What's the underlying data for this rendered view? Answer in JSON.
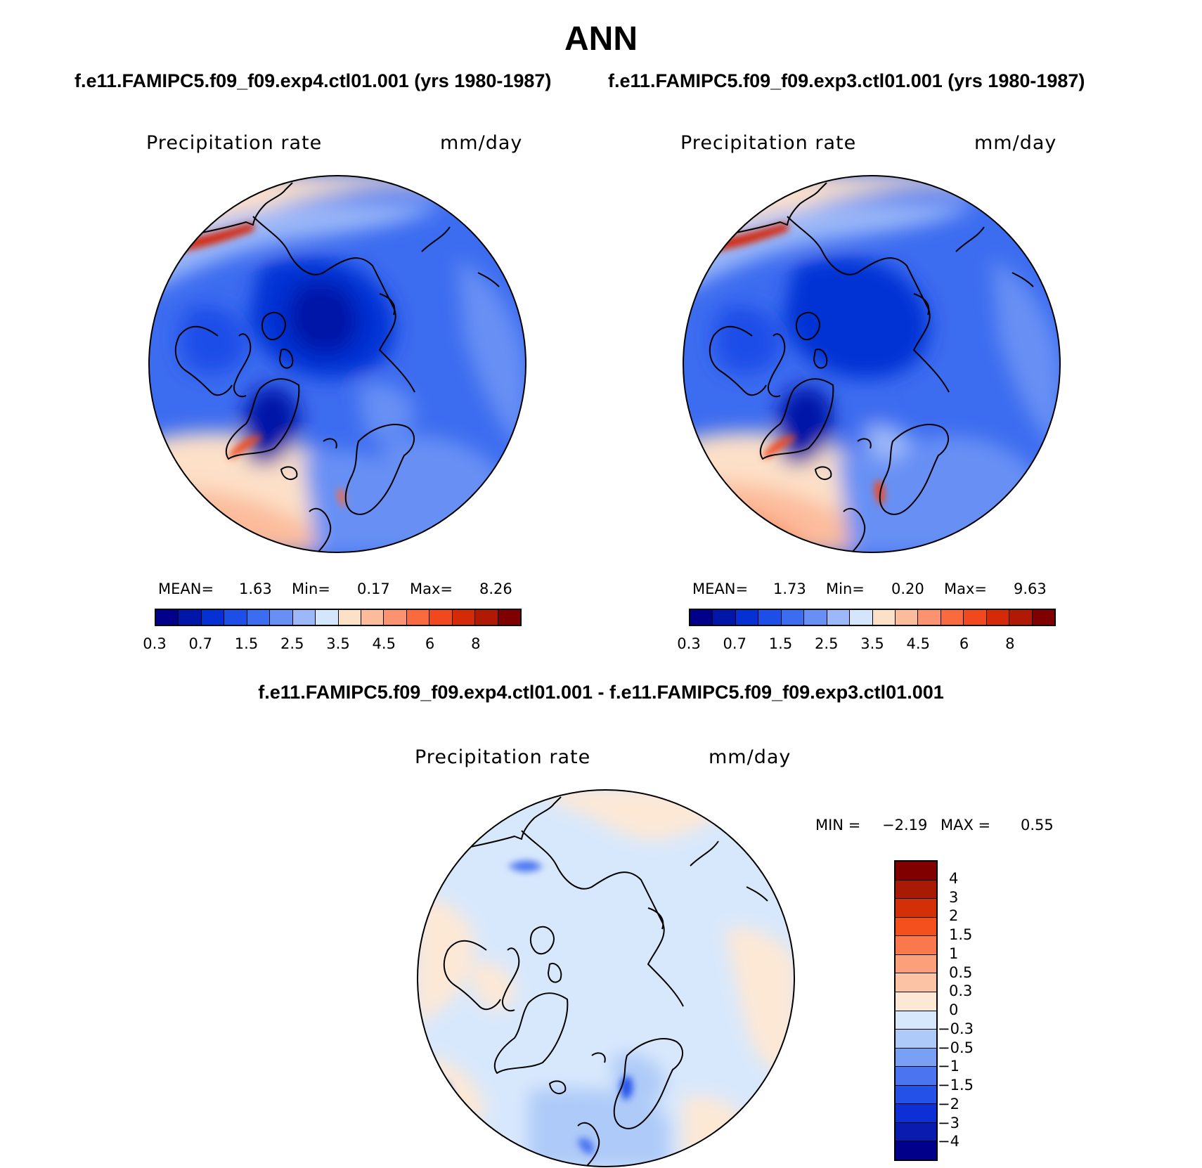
{
  "title": "ANN",
  "colors": {
    "abs_palette": [
      "#00008a",
      "#0016a8",
      "#0530d4",
      "#1e4ee8",
      "#3c6cf0",
      "#6890f4",
      "#9cb8f8",
      "#d4e6fc",
      "#fde0c8",
      "#fcbc9c",
      "#fb9370",
      "#f96a3e",
      "#f1481e",
      "#d42a08",
      "#b01a04",
      "#800000"
    ],
    "diff_palette": [
      "#00008a",
      "#0a1cb0",
      "#0c30d6",
      "#2452e8",
      "#4a74f0",
      "#7aa0f6",
      "#aecaf8",
      "#d8e8fc",
      "#fde8d6",
      "#fcc4a4",
      "#fba07a",
      "#f9784c",
      "#f3501e",
      "#d43008",
      "#a81a04",
      "#800000"
    ],
    "land_outline": "#000000"
  },
  "chart_data": [
    {
      "type": "heatmap",
      "projection": "north-polar-stereographic",
      "case": "f.e11.FAMIPC5.f09_f09.exp4.ctl01.001 (yrs 1980-1987)",
      "variable": "Precipitation rate",
      "units": "mm/day",
      "stats": {
        "mean_label": "MEAN=",
        "mean": "1.63",
        "min_label": "Min=",
        "min": "0.17",
        "max_label": "Max=",
        "max": "8.26"
      },
      "colorbar_ticks": [
        "0.3",
        "0.7",
        "1.5",
        "2.5",
        "3.5",
        "4.5",
        "6",
        "8"
      ]
    },
    {
      "type": "heatmap",
      "projection": "north-polar-stereographic",
      "case": "f.e11.FAMIPC5.f09_f09.exp3.ctl01.001 (yrs 1980-1987)",
      "variable": "Precipitation rate",
      "units": "mm/day",
      "stats": {
        "mean_label": "MEAN=",
        "mean": "1.73",
        "min_label": "Min=",
        "min": "0.20",
        "max_label": "Max=",
        "max": "9.63"
      },
      "colorbar_ticks": [
        "0.3",
        "0.7",
        "1.5",
        "2.5",
        "3.5",
        "4.5",
        "6",
        "8"
      ]
    },
    {
      "type": "heatmap",
      "projection": "north-polar-stereographic",
      "case": "f.e11.FAMIPC5.f09_f09.exp4.ctl01.001 - f.e11.FAMIPC5.f09_f09.exp3.ctl01.001",
      "variable": "Precipitation rate",
      "units": "mm/day",
      "stats": {
        "min_label": "MIN =",
        "min": "−2.19",
        "max_label": "MAX =",
        "max": "0.55"
      },
      "colorbar_ticks": [
        "4",
        "3",
        "2",
        "1.5",
        "1",
        "0.5",
        "0.3",
        "0",
        "−0.3",
        "−0.5",
        "−1",
        "−1.5",
        "−2",
        "−3",
        "−4"
      ]
    }
  ]
}
